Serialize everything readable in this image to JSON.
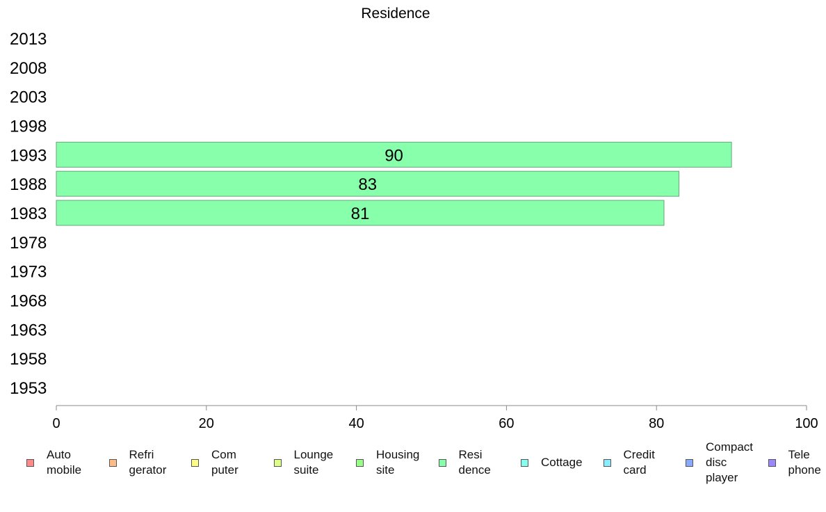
{
  "chart_data": {
    "type": "bar",
    "orientation": "horizontal",
    "title": "Residence",
    "xlabel": "",
    "ylabel": "",
    "categories": [
      "1953",
      "1958",
      "1963",
      "1968",
      "1973",
      "1978",
      "1983",
      "1988",
      "1993",
      "1998",
      "2003",
      "2008",
      "2013"
    ],
    "series": [
      {
        "name": "Resi\ndence",
        "color": "#88ffaa",
        "values": [
          null,
          null,
          null,
          null,
          null,
          null,
          81,
          83,
          90,
          null,
          null,
          null,
          null
        ]
      }
    ],
    "xlim": [
      0,
      100
    ],
    "xticks": [
      0,
      20,
      40,
      60,
      80,
      100
    ],
    "grid": false,
    "legend_position": "bottom",
    "legend": [
      {
        "label": "Auto\nmobile",
        "color": "#ff8888"
      },
      {
        "label": "Refri\ngerator",
        "color": "#ffbb88"
      },
      {
        "label": "Com\nputer",
        "color": "#ffff88"
      },
      {
        "label": "Lounge\nsuite",
        "color": "#ddff88"
      },
      {
        "label": "Housing\nsite",
        "color": "#99ff88"
      },
      {
        "label": "Resi\ndence",
        "color": "#88ffaa"
      },
      {
        "label": "Cottage",
        "color": "#88ffee"
      },
      {
        "label": "Credit\ncard",
        "color": "#88eeff"
      },
      {
        "label": "Compact\ndisc\nplayer",
        "color": "#88aaff"
      },
      {
        "label": "Tele\nphone",
        "color": "#9988ff"
      }
    ]
  }
}
